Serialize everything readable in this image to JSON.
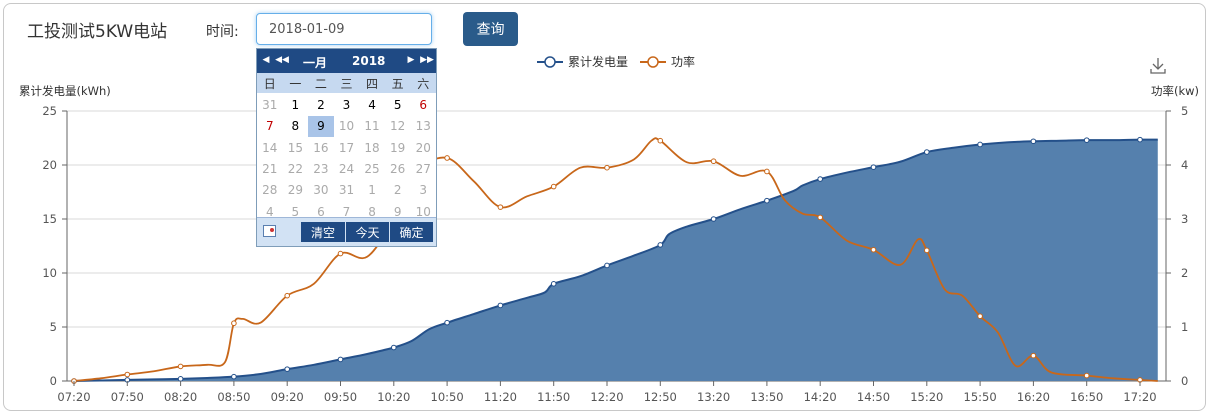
{
  "header": {
    "title": "工投测试5KW电站",
    "time_label": "时间:",
    "date_value": "2018-01-09",
    "query_label": "查询"
  },
  "calendar": {
    "month": "一月",
    "year": "2018",
    "weekdays": [
      "日",
      "一",
      "二",
      "三",
      "四",
      "五",
      "六"
    ],
    "days": [
      [
        "31",
        "1",
        "2",
        "3",
        "4",
        "5",
        "6"
      ],
      [
        "7",
        "8",
        "9",
        "10",
        "11",
        "12",
        "13"
      ],
      [
        "14",
        "15",
        "16",
        "17",
        "18",
        "19",
        "20"
      ],
      [
        "21",
        "22",
        "23",
        "24",
        "25",
        "26",
        "27"
      ],
      [
        "28",
        "29",
        "30",
        "31",
        "1",
        "2",
        "3"
      ],
      [
        "4",
        "5",
        "6",
        "7",
        "8",
        "9",
        "10"
      ]
    ],
    "selected_day": "9",
    "today_day": "9",
    "clear_label": "清空",
    "today_label": "今天",
    "confirm_label": "确定"
  },
  "colors": {
    "energy": "#24508a",
    "energy_fill": "#5580ad",
    "power": "#c8671a",
    "accent": "#2a5b8a"
  },
  "chart_data": {
    "type": "line",
    "legend_position": "top-center",
    "grid": true,
    "xlabel": "",
    "x_ticks": [
      "07:20",
      "07:50",
      "08:20",
      "08:50",
      "09:20",
      "09:50",
      "10:20",
      "10:50",
      "11:20",
      "11:50",
      "12:20",
      "12:50",
      "13:20",
      "13:50",
      "14:20",
      "14:50",
      "15:20",
      "15:50",
      "16:20",
      "16:50",
      "17:20"
    ],
    "y_left": {
      "label": "累计发电量(kWh)",
      "range": [
        0,
        25
      ],
      "ticks": [
        0,
        5,
        10,
        15,
        20,
        25
      ]
    },
    "y_right": {
      "label": "功率(kw)",
      "range": [
        0,
        5
      ],
      "ticks": [
        0,
        1,
        2,
        3,
        4,
        5
      ]
    },
    "series": [
      {
        "name": "累计发电量",
        "type": "area",
        "axis": "left",
        "points": [
          [
            "07:20",
            0
          ],
          [
            "07:35",
            0.05
          ],
          [
            "07:50",
            0.1
          ],
          [
            "08:05",
            0.15
          ],
          [
            "08:20",
            0.2
          ],
          [
            "08:35",
            0.28
          ],
          [
            "08:50",
            0.4
          ],
          [
            "09:05",
            0.65
          ],
          [
            "09:20",
            1.1
          ],
          [
            "09:35",
            1.5
          ],
          [
            "09:50",
            2.0
          ],
          [
            "10:05",
            2.5
          ],
          [
            "10:20",
            3.1
          ],
          [
            "10:30",
            3.7
          ],
          [
            "10:40",
            4.8
          ],
          [
            "10:50",
            5.4
          ],
          [
            "11:05",
            6.2
          ],
          [
            "11:20",
            7.0
          ],
          [
            "11:35",
            7.7
          ],
          [
            "11:45",
            8.2
          ],
          [
            "11:50",
            9.0
          ],
          [
            "12:05",
            9.7
          ],
          [
            "12:20",
            10.7
          ],
          [
            "12:35",
            11.6
          ],
          [
            "12:50",
            12.6
          ],
          [
            "12:55",
            13.6
          ],
          [
            "13:05",
            14.3
          ],
          [
            "13:20",
            15.0
          ],
          [
            "13:35",
            15.9
          ],
          [
            "13:50",
            16.7
          ],
          [
            "14:05",
            17.6
          ],
          [
            "14:10",
            18.1
          ],
          [
            "14:20",
            18.7
          ],
          [
            "14:35",
            19.3
          ],
          [
            "14:50",
            19.8
          ],
          [
            "15:05",
            20.3
          ],
          [
            "15:20",
            21.2
          ],
          [
            "15:35",
            21.6
          ],
          [
            "15:50",
            21.9
          ],
          [
            "16:05",
            22.1
          ],
          [
            "16:20",
            22.2
          ],
          [
            "16:35",
            22.25
          ],
          [
            "16:50",
            22.3
          ],
          [
            "17:05",
            22.3
          ],
          [
            "17:20",
            22.35
          ],
          [
            "17:30",
            22.35
          ]
        ]
      },
      {
        "name": "功率",
        "type": "line",
        "axis": "right",
        "points": [
          [
            "07:20",
            0
          ],
          [
            "07:35",
            0.05
          ],
          [
            "07:50",
            0.12
          ],
          [
            "08:05",
            0.18
          ],
          [
            "08:20",
            0.27
          ],
          [
            "08:35",
            0.3
          ],
          [
            "08:45",
            0.35
          ],
          [
            "08:50",
            1.07
          ],
          [
            "08:55",
            1.15
          ],
          [
            "09:05",
            1.08
          ],
          [
            "09:20",
            1.58
          ],
          [
            "09:35",
            1.8
          ],
          [
            "09:50",
            2.36
          ],
          [
            "10:05",
            2.3
          ],
          [
            "10:20",
            3.0
          ],
          [
            "10:35",
            3.9
          ],
          [
            "10:50",
            4.13
          ],
          [
            "11:05",
            3.7
          ],
          [
            "11:20",
            3.22
          ],
          [
            "11:35",
            3.42
          ],
          [
            "11:50",
            3.6
          ],
          [
            "12:05",
            3.95
          ],
          [
            "12:20",
            3.95
          ],
          [
            "12:35",
            4.1
          ],
          [
            "12:45",
            4.45
          ],
          [
            "12:50",
            4.45
          ],
          [
            "13:05",
            4.05
          ],
          [
            "13:20",
            4.07
          ],
          [
            "13:35",
            3.8
          ],
          [
            "13:50",
            3.88
          ],
          [
            "14:00",
            3.35
          ],
          [
            "14:10",
            3.1
          ],
          [
            "14:20",
            3.03
          ],
          [
            "14:35",
            2.6
          ],
          [
            "14:50",
            2.43
          ],
          [
            "15:05",
            2.15
          ],
          [
            "15:15",
            2.62
          ],
          [
            "15:20",
            2.42
          ],
          [
            "15:30",
            1.7
          ],
          [
            "15:40",
            1.58
          ],
          [
            "15:50",
            1.2
          ],
          [
            "16:00",
            0.9
          ],
          [
            "16:10",
            0.28
          ],
          [
            "16:20",
            0.47
          ],
          [
            "16:30",
            0.16
          ],
          [
            "16:50",
            0.1
          ],
          [
            "17:05",
            0.05
          ],
          [
            "17:20",
            0.02
          ],
          [
            "17:30",
            0
          ]
        ]
      }
    ]
  }
}
